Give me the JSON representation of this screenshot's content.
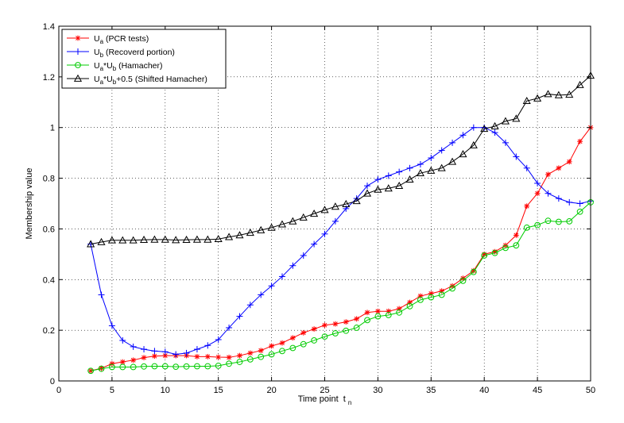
{
  "chart_data": {
    "type": "line",
    "title": "",
    "xlabel": "Time point",
    "xlabel_subscript": "n",
    "xlabel_sub_base": "t",
    "ylabel": "Membership value",
    "xlim": [
      0,
      50
    ],
    "ylim": [
      0,
      1.4
    ],
    "xticks": [
      "0",
      "5",
      "10",
      "15",
      "20",
      "25",
      "30",
      "35",
      "40",
      "45",
      "50"
    ],
    "yticks": [
      "0",
      "0.2",
      "0.4",
      "0.6",
      "0.8",
      "1",
      "1.2",
      "1.4"
    ],
    "grid": true,
    "legend_position": "top-left",
    "x": [
      3,
      4,
      5,
      6,
      7,
      8,
      9,
      10,
      11,
      12,
      13,
      14,
      15,
      16,
      17,
      18,
      19,
      20,
      21,
      22,
      23,
      24,
      25,
      26,
      27,
      28,
      29,
      30,
      31,
      32,
      33,
      34,
      35,
      36,
      37,
      38,
      39,
      40,
      41,
      42,
      43,
      44,
      45,
      46,
      47,
      48,
      49,
      50
    ],
    "series": [
      {
        "name_main": "U",
        "name_sub": "a",
        "name_rest": " (PCR tests)",
        "color": "#ff0000",
        "marker": "star",
        "values": [
          0.04,
          0.05,
          0.068,
          0.075,
          0.082,
          0.092,
          0.098,
          0.1,
          0.1,
          0.1,
          0.096,
          0.096,
          0.094,
          0.093,
          0.1,
          0.11,
          0.12,
          0.138,
          0.15,
          0.17,
          0.19,
          0.205,
          0.22,
          0.225,
          0.233,
          0.245,
          0.27,
          0.275,
          0.275,
          0.285,
          0.31,
          0.335,
          0.345,
          0.355,
          0.375,
          0.405,
          0.435,
          0.5,
          0.51,
          0.535,
          0.575,
          0.69,
          0.74,
          0.815,
          0.84,
          0.865,
          0.945,
          1.0
        ]
      },
      {
        "name_main": "U",
        "name_sub": "b",
        "name_rest": " (Recoverd portion)",
        "color": "#0000ff",
        "marker": "plus",
        "values": [
          0.54,
          0.34,
          0.218,
          0.16,
          0.135,
          0.125,
          0.118,
          0.115,
          0.105,
          0.11,
          0.125,
          0.14,
          0.163,
          0.21,
          0.255,
          0.3,
          0.34,
          0.375,
          0.412,
          0.455,
          0.495,
          0.54,
          0.58,
          0.63,
          0.68,
          0.72,
          0.77,
          0.795,
          0.81,
          0.825,
          0.84,
          0.855,
          0.88,
          0.91,
          0.94,
          0.97,
          1.0,
          1.0,
          0.98,
          0.94,
          0.885,
          0.84,
          0.78,
          0.74,
          0.72,
          0.705,
          0.7,
          0.71
        ]
      },
      {
        "name_main": "U",
        "name_sub": "a",
        "name_mid": "*U",
        "name_sub2": "b",
        "name_rest": " (Hamacher)",
        "color": "#00cc00",
        "marker": "circle",
        "values": [
          0.04,
          0.048,
          0.055,
          0.055,
          0.055,
          0.057,
          0.058,
          0.058,
          0.056,
          0.057,
          0.058,
          0.058,
          0.06,
          0.068,
          0.075,
          0.085,
          0.095,
          0.105,
          0.118,
          0.13,
          0.145,
          0.16,
          0.175,
          0.188,
          0.198,
          0.21,
          0.24,
          0.255,
          0.26,
          0.27,
          0.295,
          0.32,
          0.33,
          0.34,
          0.365,
          0.395,
          0.43,
          0.495,
          0.505,
          0.525,
          0.535,
          0.605,
          0.615,
          0.632,
          0.628,
          0.63,
          0.668,
          0.705
        ]
      },
      {
        "name_main": "U",
        "name_sub": "a",
        "name_mid": "*U",
        "name_sub2": "b",
        "name_rest": "+0.5 (Shifted Hamacher)",
        "color": "#000000",
        "marker": "triangle",
        "values": [
          0.54,
          0.548,
          0.555,
          0.555,
          0.555,
          0.557,
          0.558,
          0.558,
          0.556,
          0.557,
          0.558,
          0.558,
          0.56,
          0.568,
          0.575,
          0.585,
          0.595,
          0.605,
          0.618,
          0.63,
          0.645,
          0.66,
          0.675,
          0.688,
          0.698,
          0.71,
          0.74,
          0.755,
          0.76,
          0.77,
          0.795,
          0.82,
          0.83,
          0.84,
          0.865,
          0.895,
          0.93,
          0.995,
          1.005,
          1.025,
          1.035,
          1.105,
          1.115,
          1.132,
          1.128,
          1.13,
          1.168,
          1.205
        ]
      }
    ]
  }
}
